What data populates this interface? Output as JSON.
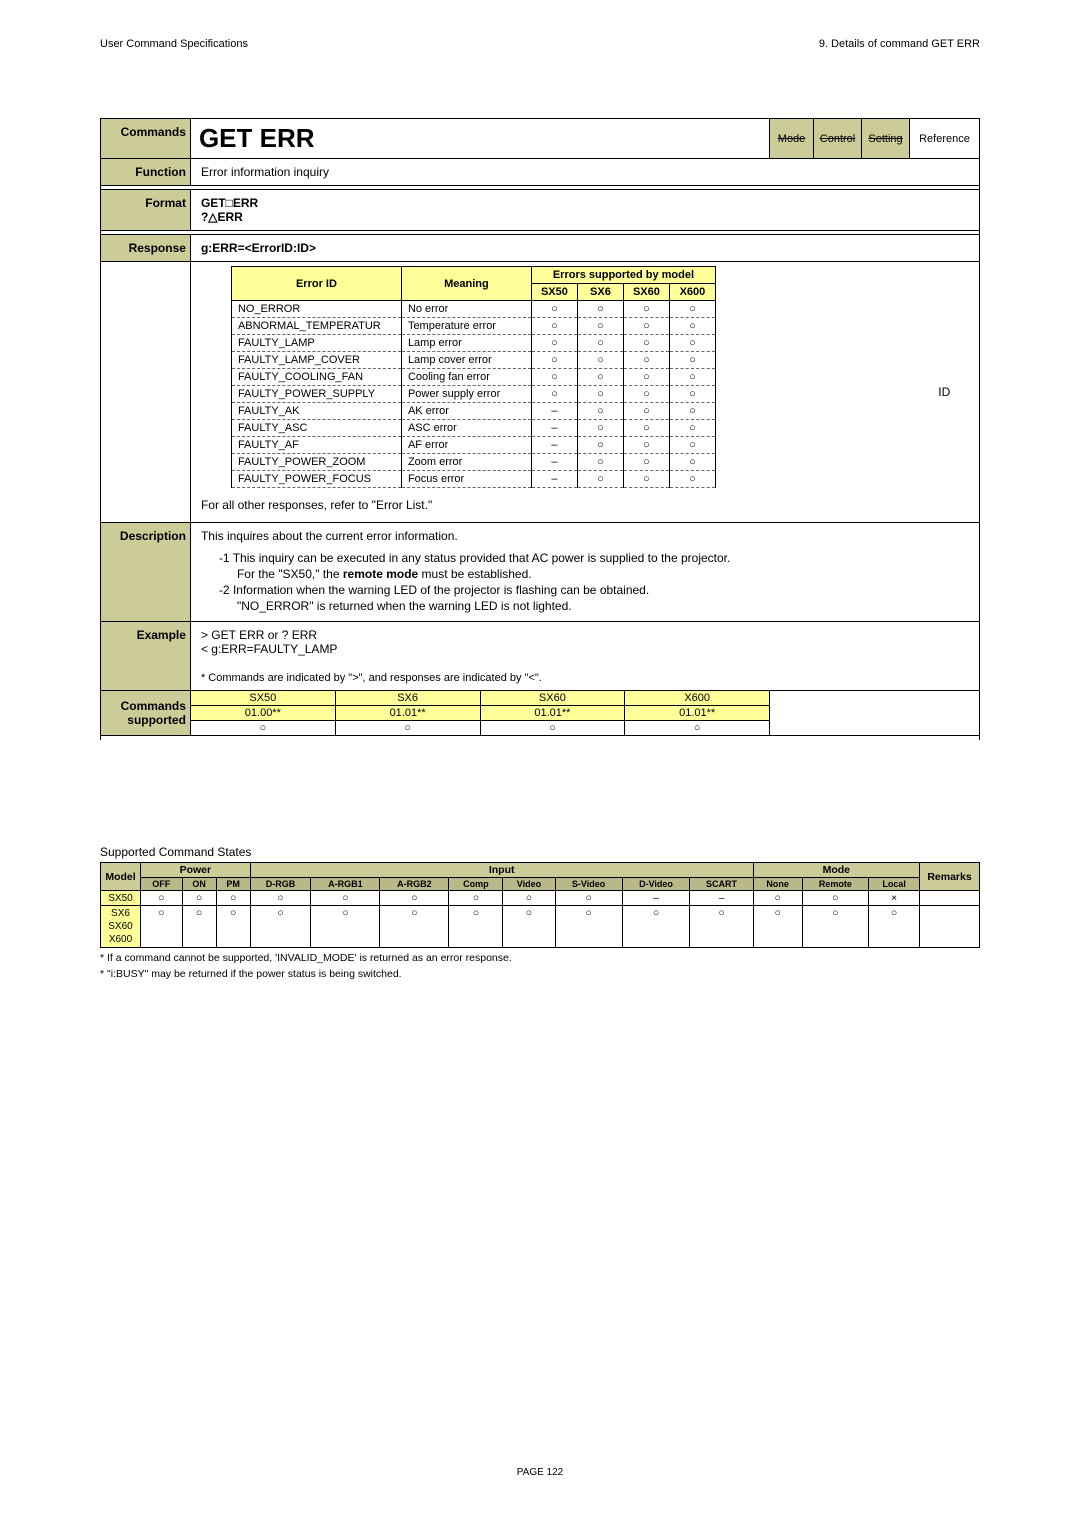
{
  "header": {
    "left": "User Command Specifications",
    "right": "9.  Details of command  GET ERR"
  },
  "footer": {
    "page": "PAGE 122"
  },
  "labels": {
    "commands": "Commands",
    "function": "Function",
    "format": "Format",
    "response": "Response",
    "description": "Description",
    "example": "Example",
    "cmds_supported1": "Commands",
    "cmds_supported2": "supported",
    "mode": "Mode",
    "control": "Control",
    "setting": "Setting",
    "reference": "Reference"
  },
  "command_name": "GET ERR",
  "function_text": "Error information inquiry",
  "format1": "GET□ERR",
  "format2": "?△ERR",
  "response_line": "g:ERR=<ErrorID:ID>",
  "error_header": {
    "error_id": "Error ID",
    "meaning": "Meaning",
    "esbm": "Errors supported by model",
    "sx50": "SX50",
    "sx6": "SX6",
    "sx60": "SX60",
    "x600": "X600"
  },
  "error_rows": [
    {
      "id": "NO_ERROR",
      "meaning": "No error",
      "v": [
        "○",
        "○",
        "○",
        "○"
      ]
    },
    {
      "id": "ABNORMAL_TEMPERATUR",
      "meaning": "Temperature error",
      "v": [
        "○",
        "○",
        "○",
        "○"
      ]
    },
    {
      "id": "FAULTY_LAMP",
      "meaning": "Lamp error",
      "v": [
        "○",
        "○",
        "○",
        "○"
      ]
    },
    {
      "id": "FAULTY_LAMP_COVER",
      "meaning": "Lamp cover error",
      "v": [
        "○",
        "○",
        "○",
        "○"
      ]
    },
    {
      "id": "FAULTY_COOLING_FAN",
      "meaning": "Cooling fan error",
      "v": [
        "○",
        "○",
        "○",
        "○"
      ]
    },
    {
      "id": "FAULTY_POWER_SUPPLY",
      "meaning": "Power supply error",
      "v": [
        "○",
        "○",
        "○",
        "○"
      ]
    },
    {
      "id": "FAULTY_AK",
      "meaning": "AK error",
      "v": [
        "–",
        "○",
        "○",
        "○"
      ]
    },
    {
      "id": "FAULTY_ASC",
      "meaning": "ASC error",
      "v": [
        "–",
        "○",
        "○",
        "○"
      ]
    },
    {
      "id": "FAULTY_AF",
      "meaning": "AF error",
      "v": [
        "–",
        "○",
        "○",
        "○"
      ]
    },
    {
      "id": "FAULTY_POWER_ZOOM",
      "meaning": "Zoom error",
      "v": [
        "–",
        "○",
        "○",
        "○"
      ]
    },
    {
      "id": "FAULTY_POWER_FOCUS",
      "meaning": "Focus error",
      "v": [
        "–",
        "○",
        "○",
        "○"
      ]
    }
  ],
  "side_id": "ID",
  "response_footer": "For all other responses, refer to \"Error List.\"",
  "description": {
    "intro": "This inquires about the current error information.",
    "n1a": "-1  This inquiry can be executed in any status provided that AC power is supplied to the projector.",
    "n1b": "For the \"SX50,\" the ",
    "n1b_bold": "remote mode",
    "n1b_tail": " must be established.",
    "n2a": "-2  Information when the warning LED of the projector is flashing can be obtained.",
    "n2b": "\"NO_ERROR\" is returned when the warning LED is not lighted."
  },
  "example": {
    "l1": "> GET ERR or ? ERR",
    "l2": "< g:ERR=FAULTY_LAMP",
    "note": "* Commands are indicated by \">\", and responses are indicated by \"<\"."
  },
  "supported": {
    "cols": [
      "SX50",
      "SX6",
      "SX60",
      "X600"
    ],
    "vers": [
      "01.00**",
      "01.01**",
      "01.01**",
      "01.01**"
    ],
    "marks": [
      "○",
      "○",
      "○",
      "○"
    ]
  },
  "states": {
    "title": "Supported Command States",
    "grp": {
      "model": "Model",
      "power": "Power",
      "input": "Input",
      "mode": "Mode",
      "remarks": "Remarks"
    },
    "sub": [
      "OFF",
      "ON",
      "PM",
      "D-RGB",
      "A-RGB1",
      "A-RGB2",
      "Comp",
      "Video",
      "S-Video",
      "D-Video",
      "SCART",
      "None",
      "Remote",
      "Local"
    ],
    "models": [
      "SX50",
      "SX6",
      "SX60",
      "X600"
    ],
    "row1": [
      "○",
      "○",
      "○",
      "○",
      "○",
      "○",
      "○",
      "○",
      "○",
      "–",
      "–",
      "○",
      "○",
      "×",
      ""
    ],
    "row2": [
      "○",
      "○",
      "○",
      "○",
      "○",
      "○",
      "○",
      "○",
      "○",
      "○",
      "○",
      "○",
      "○",
      "○",
      ""
    ],
    "fn1": "* If a command cannot be supported, 'INVALID_MODE' is returned as an error response.",
    "fn2": "* \"i:BUSY\" may be returned if the power status is being switched."
  }
}
